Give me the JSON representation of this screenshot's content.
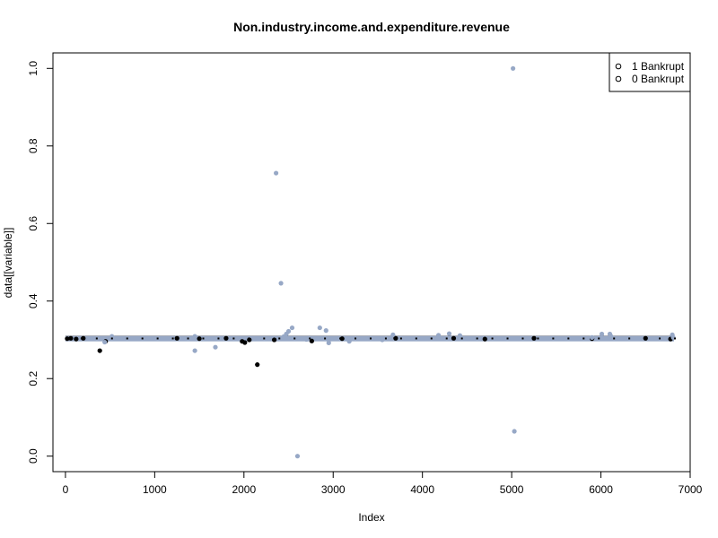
{
  "chart_data": {
    "type": "scatter",
    "title": "Non.industry.income.and.expenditure.revenue",
    "xlabel": "Index",
    "ylabel": "data[[variable]]",
    "xlim": [
      -140,
      7000
    ],
    "ylim": [
      -0.04,
      1.04
    ],
    "x_ticks": [
      0,
      1000,
      2000,
      3000,
      4000,
      5000,
      6000,
      7000
    ],
    "y_ticks": [
      0.0,
      0.2,
      0.4,
      0.6,
      0.8,
      1.0
    ],
    "x_tick_labels": [
      "0",
      "1000",
      "2000",
      "3000",
      "4000",
      "5000",
      "6000",
      "7000"
    ],
    "y_tick_labels": [
      "0.0",
      "0.2",
      "0.4",
      "0.6",
      "0.8",
      "1.0"
    ],
    "grid": false,
    "legend_position": "top-right",
    "legend": [
      {
        "label": "1 Bankrupt",
        "marker": "o"
      },
      {
        "label": "0 Bankrupt",
        "marker": "o"
      }
    ],
    "series": [
      {
        "group": "1",
        "color": "#000000",
        "band": {
          "x_start": 0,
          "x_end": 6819,
          "y": 0.3035
        },
        "points": [
          {
            "x": 20,
            "y": 0.303
          },
          {
            "x": 60,
            "y": 0.304
          },
          {
            "x": 120,
            "y": 0.302
          },
          {
            "x": 200,
            "y": 0.304
          },
          {
            "x": 385,
            "y": 0.272
          },
          {
            "x": 450,
            "y": 0.296
          },
          {
            "x": 1250,
            "y": 0.304
          },
          {
            "x": 1500,
            "y": 0.303
          },
          {
            "x": 1800,
            "y": 0.304
          },
          {
            "x": 1980,
            "y": 0.296
          },
          {
            "x": 2010,
            "y": 0.293
          },
          {
            "x": 2060,
            "y": 0.3
          },
          {
            "x": 2150,
            "y": 0.236
          },
          {
            "x": 2340,
            "y": 0.3
          },
          {
            "x": 2760,
            "y": 0.297
          },
          {
            "x": 3100,
            "y": 0.303
          },
          {
            "x": 3700,
            "y": 0.304
          },
          {
            "x": 4350,
            "y": 0.304
          },
          {
            "x": 4700,
            "y": 0.302
          },
          {
            "x": 5250,
            "y": 0.304
          },
          {
            "x": 5900,
            "y": 0.303
          },
          {
            "x": 6500,
            "y": 0.304
          },
          {
            "x": 6780,
            "y": 0.302
          }
        ]
      },
      {
        "group": "0",
        "color": "#97A8C6",
        "band": {
          "x_start": 0,
          "x_end": 6819,
          "y": 0.303
        },
        "points": [
          {
            "x": 5015,
            "y": 1.0
          },
          {
            "x": 2360,
            "y": 0.73
          },
          {
            "x": 2415,
            "y": 0.446
          },
          {
            "x": 2540,
            "y": 0.331
          },
          {
            "x": 2500,
            "y": 0.322
          },
          {
            "x": 2475,
            "y": 0.315
          },
          {
            "x": 2445,
            "y": 0.308
          },
          {
            "x": 2850,
            "y": 0.331
          },
          {
            "x": 2920,
            "y": 0.324
          },
          {
            "x": 2950,
            "y": 0.292
          },
          {
            "x": 2600,
            "y": 0.0
          },
          {
            "x": 5030,
            "y": 0.064
          },
          {
            "x": 1450,
            "y": 0.272
          },
          {
            "x": 1680,
            "y": 0.281
          },
          {
            "x": 1450,
            "y": 0.309
          },
          {
            "x": 520,
            "y": 0.309
          },
          {
            "x": 440,
            "y": 0.294
          },
          {
            "x": 3180,
            "y": 0.296
          },
          {
            "x": 3670,
            "y": 0.313
          },
          {
            "x": 4180,
            "y": 0.312
          },
          {
            "x": 4300,
            "y": 0.316
          },
          {
            "x": 4420,
            "y": 0.311
          },
          {
            "x": 6010,
            "y": 0.315
          },
          {
            "x": 6100,
            "y": 0.315
          },
          {
            "x": 6110,
            "y": 0.31
          },
          {
            "x": 6800,
            "y": 0.313
          },
          {
            "x": 6810,
            "y": 0.306
          },
          {
            "x": 3550,
            "y": 0.3
          },
          {
            "x": 5900,
            "y": 0.306
          },
          {
            "x": 2700,
            "y": 0.301
          }
        ]
      }
    ]
  }
}
